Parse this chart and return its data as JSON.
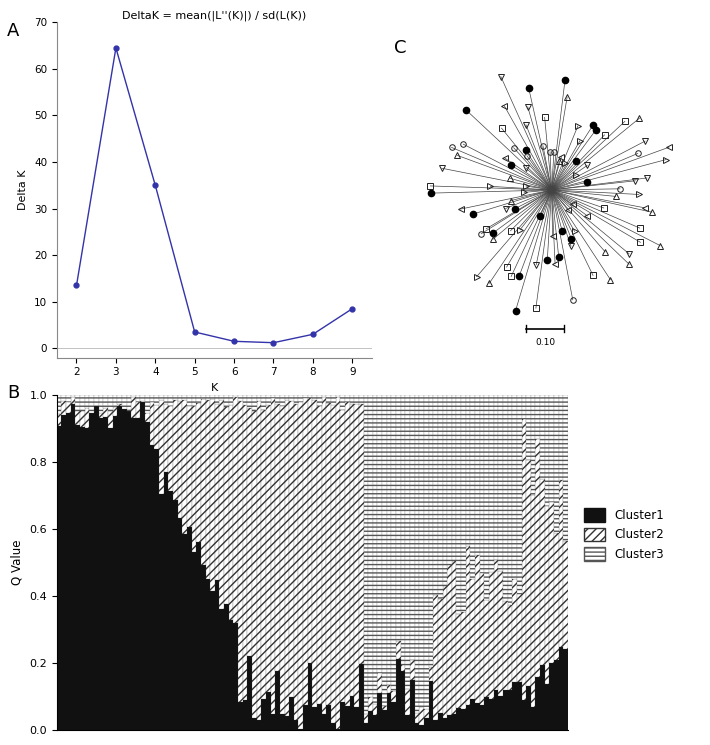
{
  "panel_A": {
    "label": "A",
    "title": "DeltaK = mean(|L''(K)|) / sd(L(K))",
    "x": [
      2,
      3,
      4,
      5,
      6,
      7,
      8,
      9
    ],
    "y": [
      13.5,
      64.5,
      35.0,
      3.5,
      1.5,
      1.2,
      3.0,
      8.5
    ],
    "xlabel": "K",
    "ylabel": "Delta K",
    "xlim": [
      1.5,
      9.5
    ],
    "ylim": [
      -2,
      70
    ],
    "yticks": [
      0,
      10,
      20,
      30,
      40,
      50,
      60,
      70
    ],
    "xticks": [
      2,
      3,
      4,
      5,
      6,
      7,
      8,
      9
    ],
    "line_color": "#3333aa",
    "marker_color": "#3333aa"
  },
  "panel_C": {
    "label": "C",
    "n_taxa": 95,
    "scale_label": "0.10"
  },
  "panel_B": {
    "label": "B",
    "ylabel": "Q Value",
    "ylim": [
      0,
      1.0
    ],
    "yticks": [
      0.0,
      0.2,
      0.4,
      0.6,
      0.8,
      1.0
    ],
    "n_samples": 110,
    "legend_labels": [
      "Cluster1",
      "Cluster2",
      "Cluster3"
    ]
  }
}
